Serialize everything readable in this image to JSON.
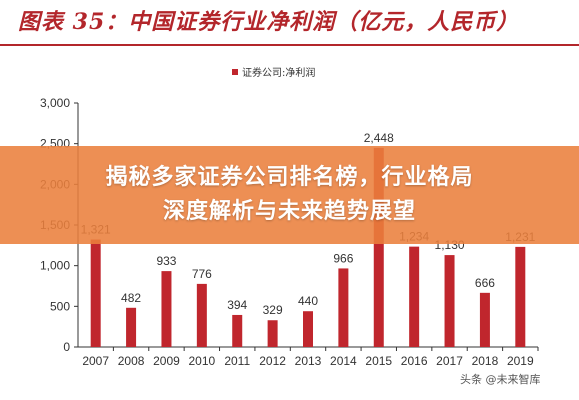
{
  "figure": {
    "title": "图表 35：中国证券行业净利润（亿元，人民币）"
  },
  "overlay": {
    "line1": "揭秘多家证券公司排名榜，行业格局",
    "line2": "深度解析与未来趋势展望"
  },
  "watermark": "头条 @未来智库",
  "colors": {
    "bar": "#c0262d",
    "axis": "#333333",
    "title": "#b3262b",
    "banner": "#ea803c"
  },
  "chart_data": {
    "type": "bar",
    "categories": [
      "2007",
      "2008",
      "2009",
      "2010",
      "2011",
      "2012",
      "2013",
      "2014",
      "2015",
      "2016",
      "2017",
      "2018",
      "2019"
    ],
    "series": [
      {
        "name": "证券公司:净利润",
        "values": [
          1321,
          482,
          933,
          776,
          394,
          329,
          440,
          966,
          2448,
          1234,
          1130,
          666,
          1231
        ]
      }
    ],
    "data_labels": [
      "1,321",
      "482",
      "933",
      "776",
      "394",
      "329",
      "440",
      "966",
      "2,448",
      "1,234",
      "1,130",
      "666",
      "1,231"
    ],
    "yticks": [
      "0",
      "500",
      "1,000",
      "1,500",
      "2,000",
      "2,500",
      "3,000"
    ],
    "ylim": [
      0,
      3000
    ],
    "legend_position": "top",
    "grid": false
  }
}
